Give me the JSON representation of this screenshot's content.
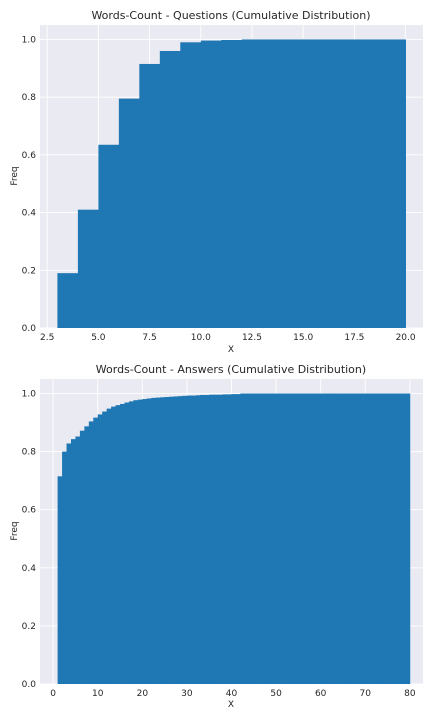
{
  "chart_data": [
    {
      "type": "bar",
      "title": "Words-Count - Questions (Cumulative Distribution)",
      "xlabel": "X",
      "ylabel": "Freq",
      "xlim": [
        2.15,
        20.85
      ],
      "ylim": [
        0,
        1.05
      ],
      "xticks": [
        2.5,
        5.0,
        7.5,
        10.0,
        12.5,
        15.0,
        17.5,
        20.0
      ],
      "xtick_labels": [
        "2.5",
        "5.0",
        "7.5",
        "10.0",
        "12.5",
        "15.0",
        "17.5",
        "20.0"
      ],
      "yticks": [
        0.0,
        0.2,
        0.4,
        0.6,
        0.8,
        1.0
      ],
      "ytick_labels": [
        "0.0",
        "0.2",
        "0.4",
        "0.6",
        "0.8",
        "1.0"
      ],
      "grid": true,
      "color": "#1f77b4",
      "bin_width": 1,
      "x": [
        3,
        4,
        5,
        6,
        7,
        8,
        9,
        10,
        11,
        12,
        13,
        14,
        15,
        16,
        17,
        18,
        19
      ],
      "values": [
        0.19,
        0.41,
        0.635,
        0.795,
        0.915,
        0.96,
        0.99,
        0.996,
        0.998,
        1.0,
        1.0,
        1.0,
        1.0,
        1.0,
        1.0,
        1.0,
        1.0
      ]
    },
    {
      "type": "bar",
      "title": "Words-Count - Answers (Cumulative Distribution)",
      "xlabel": "X",
      "ylabel": "Freq",
      "xlim": [
        -2.95,
        82.95
      ],
      "ylim": [
        0,
        1.05
      ],
      "xticks": [
        0,
        10,
        20,
        30,
        40,
        50,
        60,
        70,
        80
      ],
      "xtick_labels": [
        "0",
        "10",
        "20",
        "30",
        "40",
        "50",
        "60",
        "70",
        "80"
      ],
      "yticks": [
        0.0,
        0.2,
        0.4,
        0.6,
        0.8,
        1.0
      ],
      "ytick_labels": [
        "0.0",
        "0.2",
        "0.4",
        "0.6",
        "0.8",
        "1.0"
      ],
      "grid": true,
      "color": "#1f77b4",
      "bin_width": 1,
      "x": [
        1,
        2,
        3,
        4,
        5,
        6,
        7,
        8,
        9,
        10,
        11,
        12,
        13,
        14,
        15,
        16,
        17,
        18,
        19,
        20,
        21,
        22,
        23,
        24,
        25,
        26,
        27,
        28,
        29,
        30,
        31,
        32,
        33,
        34,
        35,
        36,
        37,
        38,
        39,
        40,
        41,
        42,
        43,
        44,
        45,
        46,
        47,
        48,
        49,
        50,
        51,
        52,
        53,
        54,
        55,
        56,
        57,
        58,
        59,
        60,
        61,
        62,
        63,
        64,
        65,
        66,
        67,
        68,
        69,
        70,
        71,
        72,
        73,
        74,
        75,
        76,
        77,
        78,
        79
      ],
      "values": [
        0.715,
        0.8,
        0.828,
        0.843,
        0.852,
        0.872,
        0.887,
        0.904,
        0.917,
        0.928,
        0.938,
        0.948,
        0.955,
        0.96,
        0.964,
        0.969,
        0.973,
        0.977,
        0.979,
        0.981,
        0.983,
        0.985,
        0.986,
        0.987,
        0.988,
        0.989,
        0.99,
        0.991,
        0.992,
        0.993,
        0.993,
        0.994,
        0.995,
        0.995,
        0.996,
        0.996,
        0.996,
        0.997,
        0.997,
        0.998,
        0.998,
        1.0,
        1.0,
        1.0,
        1.0,
        1.0,
        1.0,
        1.0,
        1.0,
        1.0,
        1.0,
        1.0,
        1.0,
        1.0,
        1.0,
        1.0,
        1.0,
        1.0,
        1.0,
        1.0,
        1.0,
        1.0,
        1.0,
        1.0,
        1.0,
        1.0,
        1.0,
        1.0,
        1.0,
        1.0,
        1.0,
        1.0,
        1.0,
        1.0,
        1.0,
        1.0,
        1.0,
        1.0,
        1.0
      ]
    }
  ]
}
